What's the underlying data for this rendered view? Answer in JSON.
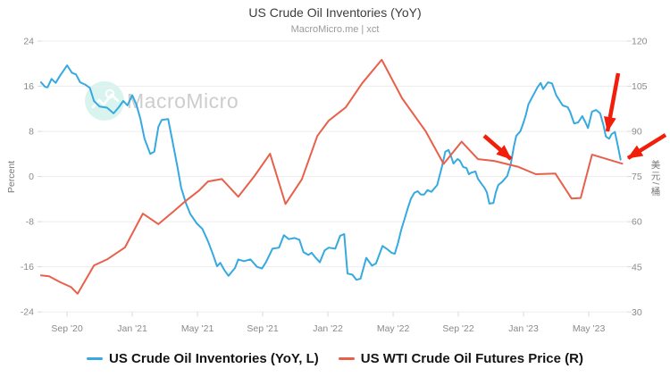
{
  "title": "US Crude Oil Inventories (YoY)",
  "subtitle": "MacroMicro.me | xct",
  "watermark": {
    "brand": "MacroMicro"
  },
  "colors": {
    "series_blue": "#36a9e0",
    "series_red": "#e8604a",
    "arrow_red": "#f21e0a",
    "grid": "#ededed",
    "tick_text": "#8a8a8a"
  },
  "legend": [
    {
      "label": "US Crude Oil Inventories (YoY, L)",
      "color": "#36a9e0"
    },
    {
      "label": "US WTI Crude Oil Futures Price (R)",
      "color": "#e8604a"
    }
  ],
  "chart_data": {
    "type": "line",
    "title": "US Crude Oil Inventories (YoY)",
    "x_axis": {
      "unit": "months since Aug 2020",
      "domain": [
        -0.5,
        35.4
      ],
      "ticks": [
        {
          "m": 1.1,
          "label": "Sep '20"
        },
        {
          "m": 5.1,
          "label": "Jan '21"
        },
        {
          "m": 9.1,
          "label": "May '21"
        },
        {
          "m": 13.1,
          "label": "Sep '21"
        },
        {
          "m": 17.1,
          "label": "Jan '22"
        },
        {
          "m": 21.1,
          "label": "May '22"
        },
        {
          "m": 25.1,
          "label": "Sep '22"
        },
        {
          "m": 29.1,
          "label": "Jan '23"
        },
        {
          "m": 33.1,
          "label": "May '23"
        }
      ]
    },
    "y_left": {
      "label": "Percent",
      "range": [
        -24,
        24
      ],
      "ticks": [
        24,
        16,
        8,
        0,
        -8,
        -16,
        -24
      ]
    },
    "y_right": {
      "label": "美元/桶",
      "range": [
        30,
        120
      ],
      "ticks": [
        120,
        105,
        90,
        75,
        60,
        45,
        30
      ]
    },
    "grid": "horizontal",
    "series": [
      {
        "name": "US Crude Oil Inventories (YoY, L)",
        "axis": "left",
        "color": "#36a9e0",
        "points": [
          [
            -0.5,
            16.7
          ],
          [
            -0.25,
            15.9
          ],
          [
            -0.1,
            15.8
          ],
          [
            0.15,
            17.3
          ],
          [
            0.4,
            16.6
          ],
          [
            0.65,
            17.8
          ],
          [
            1.1,
            19.7
          ],
          [
            1.4,
            18.4
          ],
          [
            1.65,
            18.1
          ],
          [
            1.9,
            16.7
          ],
          [
            2.2,
            16.3
          ],
          [
            2.5,
            15.7
          ],
          [
            2.75,
            13.4
          ],
          [
            3.1,
            12.4
          ],
          [
            3.55,
            12.2
          ],
          [
            3.95,
            11.2
          ],
          [
            4.25,
            12.2
          ],
          [
            4.55,
            13.4
          ],
          [
            4.8,
            12.6
          ],
          [
            5.1,
            14.4
          ],
          [
            5.35,
            12.8
          ],
          [
            5.6,
            10.2
          ],
          [
            5.85,
            6.7
          ],
          [
            6.2,
            4.0
          ],
          [
            6.45,
            4.4
          ],
          [
            6.7,
            8.8
          ],
          [
            6.9,
            10.0
          ],
          [
            7.3,
            10.2
          ],
          [
            7.55,
            6.5
          ],
          [
            7.85,
            2.0
          ],
          [
            8.1,
            -2.0
          ],
          [
            8.4,
            -4.8
          ],
          [
            8.65,
            -6.6
          ],
          [
            9.05,
            -8.3
          ],
          [
            9.4,
            -9.3
          ],
          [
            9.75,
            -11.5
          ],
          [
            10.05,
            -13.8
          ],
          [
            10.3,
            -15.9
          ],
          [
            10.5,
            -15.3
          ],
          [
            10.75,
            -16.6
          ],
          [
            11.0,
            -17.6
          ],
          [
            11.4,
            -16.2
          ],
          [
            11.6,
            -14.7
          ],
          [
            11.95,
            -15.0
          ],
          [
            12.35,
            -14.7
          ],
          [
            12.75,
            -16.0
          ],
          [
            13.05,
            -16.3
          ],
          [
            13.3,
            -15.2
          ],
          [
            13.7,
            -12.8
          ],
          [
            14.1,
            -12.6
          ],
          [
            14.4,
            -10.4
          ],
          [
            14.7,
            -11.1
          ],
          [
            15.05,
            -10.9
          ],
          [
            15.35,
            -11.2
          ],
          [
            15.6,
            -13.4
          ],
          [
            15.9,
            -13.9
          ],
          [
            16.1,
            -13.5
          ],
          [
            16.35,
            -14.4
          ],
          [
            16.6,
            -15.2
          ],
          [
            16.9,
            -13.1
          ],
          [
            17.15,
            -12.6
          ],
          [
            17.55,
            -12.8
          ],
          [
            17.85,
            -10.5
          ],
          [
            18.1,
            -10.2
          ],
          [
            18.3,
            -17.2
          ],
          [
            18.6,
            -17.4
          ],
          [
            18.85,
            -18.3
          ],
          [
            19.1,
            -18.1
          ],
          [
            19.45,
            -14.4
          ],
          [
            19.8,
            -15.8
          ],
          [
            20.05,
            -15.4
          ],
          [
            20.45,
            -12.3
          ],
          [
            20.75,
            -12.9
          ],
          [
            21.0,
            -13.5
          ],
          [
            21.2,
            -13.7
          ],
          [
            21.4,
            -11.8
          ],
          [
            21.6,
            -9.4
          ],
          [
            21.8,
            -7.5
          ],
          [
            22.0,
            -5.6
          ],
          [
            22.2,
            -3.9
          ],
          [
            22.4,
            -2.9
          ],
          [
            22.6,
            -2.6
          ],
          [
            22.8,
            -3.2
          ],
          [
            23.0,
            -3.2
          ],
          [
            23.2,
            -2.4
          ],
          [
            23.45,
            -2.7
          ],
          [
            23.8,
            -1.5
          ],
          [
            24.1,
            1.8
          ],
          [
            24.3,
            4.4
          ],
          [
            24.5,
            4.7
          ],
          [
            24.65,
            3.6
          ],
          [
            24.8,
            2.3
          ],
          [
            25.05,
            3.1
          ],
          [
            25.2,
            2.8
          ],
          [
            25.4,
            1.7
          ],
          [
            25.6,
            1.5
          ],
          [
            25.75,
            0.4
          ],
          [
            25.9,
            0.7
          ],
          [
            26.15,
            0.9
          ],
          [
            26.3,
            -0.4
          ],
          [
            26.5,
            -1.2
          ],
          [
            26.7,
            -2.0
          ],
          [
            26.85,
            -2.8
          ],
          [
            27.0,
            -4.8
          ],
          [
            27.25,
            -4.7
          ],
          [
            27.4,
            -2.8
          ],
          [
            27.55,
            -1.5
          ],
          [
            27.8,
            -0.9
          ],
          [
            27.95,
            -0.4
          ],
          [
            28.1,
            0.1
          ],
          [
            28.3,
            2.0
          ],
          [
            28.5,
            5.2
          ],
          [
            28.65,
            7.2
          ],
          [
            28.9,
            8.0
          ],
          [
            29.1,
            9.6
          ],
          [
            29.25,
            11.0
          ],
          [
            29.4,
            12.8
          ],
          [
            29.6,
            13.9
          ],
          [
            29.75,
            14.7
          ],
          [
            29.95,
            15.8
          ],
          [
            30.15,
            16.6
          ],
          [
            30.3,
            15.5
          ],
          [
            30.6,
            16.7
          ],
          [
            30.85,
            16.5
          ],
          [
            31.1,
            14.4
          ],
          [
            31.5,
            12.6
          ],
          [
            31.8,
            12.3
          ],
          [
            31.95,
            11.5
          ],
          [
            32.2,
            9.4
          ],
          [
            32.45,
            9.6
          ],
          [
            32.7,
            10.7
          ],
          [
            32.9,
            9.6
          ],
          [
            33.05,
            8.6
          ],
          [
            33.3,
            11.5
          ],
          [
            33.55,
            11.8
          ],
          [
            33.8,
            11.2
          ],
          [
            34.0,
            9.1
          ],
          [
            34.15,
            7.1
          ],
          [
            34.35,
            6.7
          ],
          [
            34.5,
            7.5
          ],
          [
            34.7,
            7.9
          ],
          [
            34.85,
            5.9
          ],
          [
            35.05,
            3.0
          ]
        ]
      },
      {
        "name": "US WTI Crude Oil Futures Price (R)",
        "axis": "right",
        "color": "#e8604a",
        "points": [
          [
            -0.5,
            42.2
          ],
          [
            0,
            41.9
          ],
          [
            0.65,
            40.0
          ],
          [
            1.35,
            38.3
          ],
          [
            1.75,
            36.1
          ],
          [
            2.75,
            45.5
          ],
          [
            3.55,
            47.5
          ],
          [
            4.65,
            51.5
          ],
          [
            5.75,
            62.7
          ],
          [
            6.7,
            59.2
          ],
          [
            7.65,
            63.5
          ],
          [
            8.35,
            66.8
          ],
          [
            9.2,
            70.4
          ],
          [
            9.75,
            73.4
          ],
          [
            10.6,
            74.2
          ],
          [
            11.6,
            68.3
          ],
          [
            12.6,
            75.2
          ],
          [
            13.55,
            82.6
          ],
          [
            14.5,
            65.9
          ],
          [
            15.5,
            74.1
          ],
          [
            16.45,
            88.5
          ],
          [
            17.15,
            93.6
          ],
          [
            18.2,
            98.0
          ],
          [
            19.2,
            106.0
          ],
          [
            20.4,
            113.8
          ],
          [
            21.65,
            101.0
          ],
          [
            23.1,
            90.0
          ],
          [
            24.2,
            79.2
          ],
          [
            25.3,
            86.6
          ],
          [
            26.3,
            80.8
          ],
          [
            27.3,
            80.2
          ],
          [
            28.8,
            78.2
          ],
          [
            29.85,
            75.8
          ],
          [
            31.05,
            76.0
          ],
          [
            32.05,
            67.7
          ],
          [
            32.6,
            67.9
          ],
          [
            33.3,
            82.3
          ],
          [
            35.15,
            79.3
          ]
        ]
      }
    ],
    "annotations": [
      {
        "type": "arrow",
        "color": "#f21e0a",
        "from": [
          542,
          152
        ],
        "to": [
          572,
          178
        ]
      },
      {
        "type": "arrow",
        "color": "#f21e0a",
        "from": [
          692,
          82
        ],
        "to": [
          680,
          147
        ]
      },
      {
        "type": "arrow",
        "color": "#f21e0a",
        "from": [
          745,
          151
        ],
        "to": [
          703,
          177
        ]
      }
    ],
    "legend_position": "bottom"
  }
}
